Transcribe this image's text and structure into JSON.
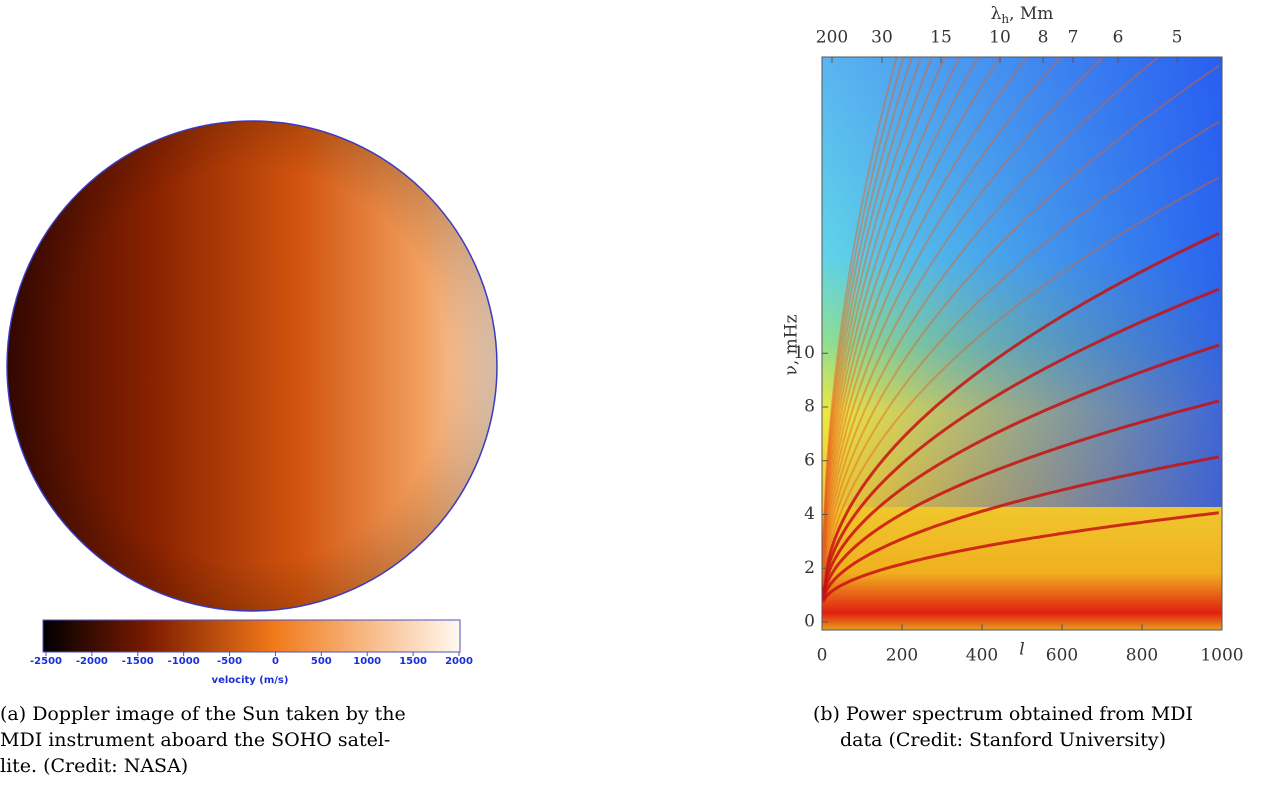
{
  "panel_a": {
    "colorbar": {
      "ticks": [
        "-2500",
        "-2000",
        "-1500",
        "-1000",
        "-500",
        "0",
        "500",
        "1000",
        "1500",
        "2000"
      ],
      "label": "velocity (m/s)"
    },
    "caption": [
      "(a) Doppler image of the Sun taken by the",
      "MDI instrument aboard the SOHO satel-",
      "lite. (Credit: NASA)"
    ]
  },
  "panel_b": {
    "x_ticks": [
      "0",
      "200",
      "400",
      "600",
      "800",
      "1000"
    ],
    "x_label": "l",
    "y_ticks": [
      "0",
      "2",
      "4",
      "6",
      "8",
      "10"
    ],
    "y_label": "ν, mHz",
    "top_ticks": [
      "200",
      "30",
      "15",
      "10",
      "8",
      "7",
      "6",
      "5"
    ],
    "top_label": {
      "symbol": "λ",
      "subscript": "h",
      "unit": ", Mm"
    },
    "caption": [
      "(b) Power spectrum obtained from MDI",
      "data (Credit: Stanford University)"
    ]
  }
}
